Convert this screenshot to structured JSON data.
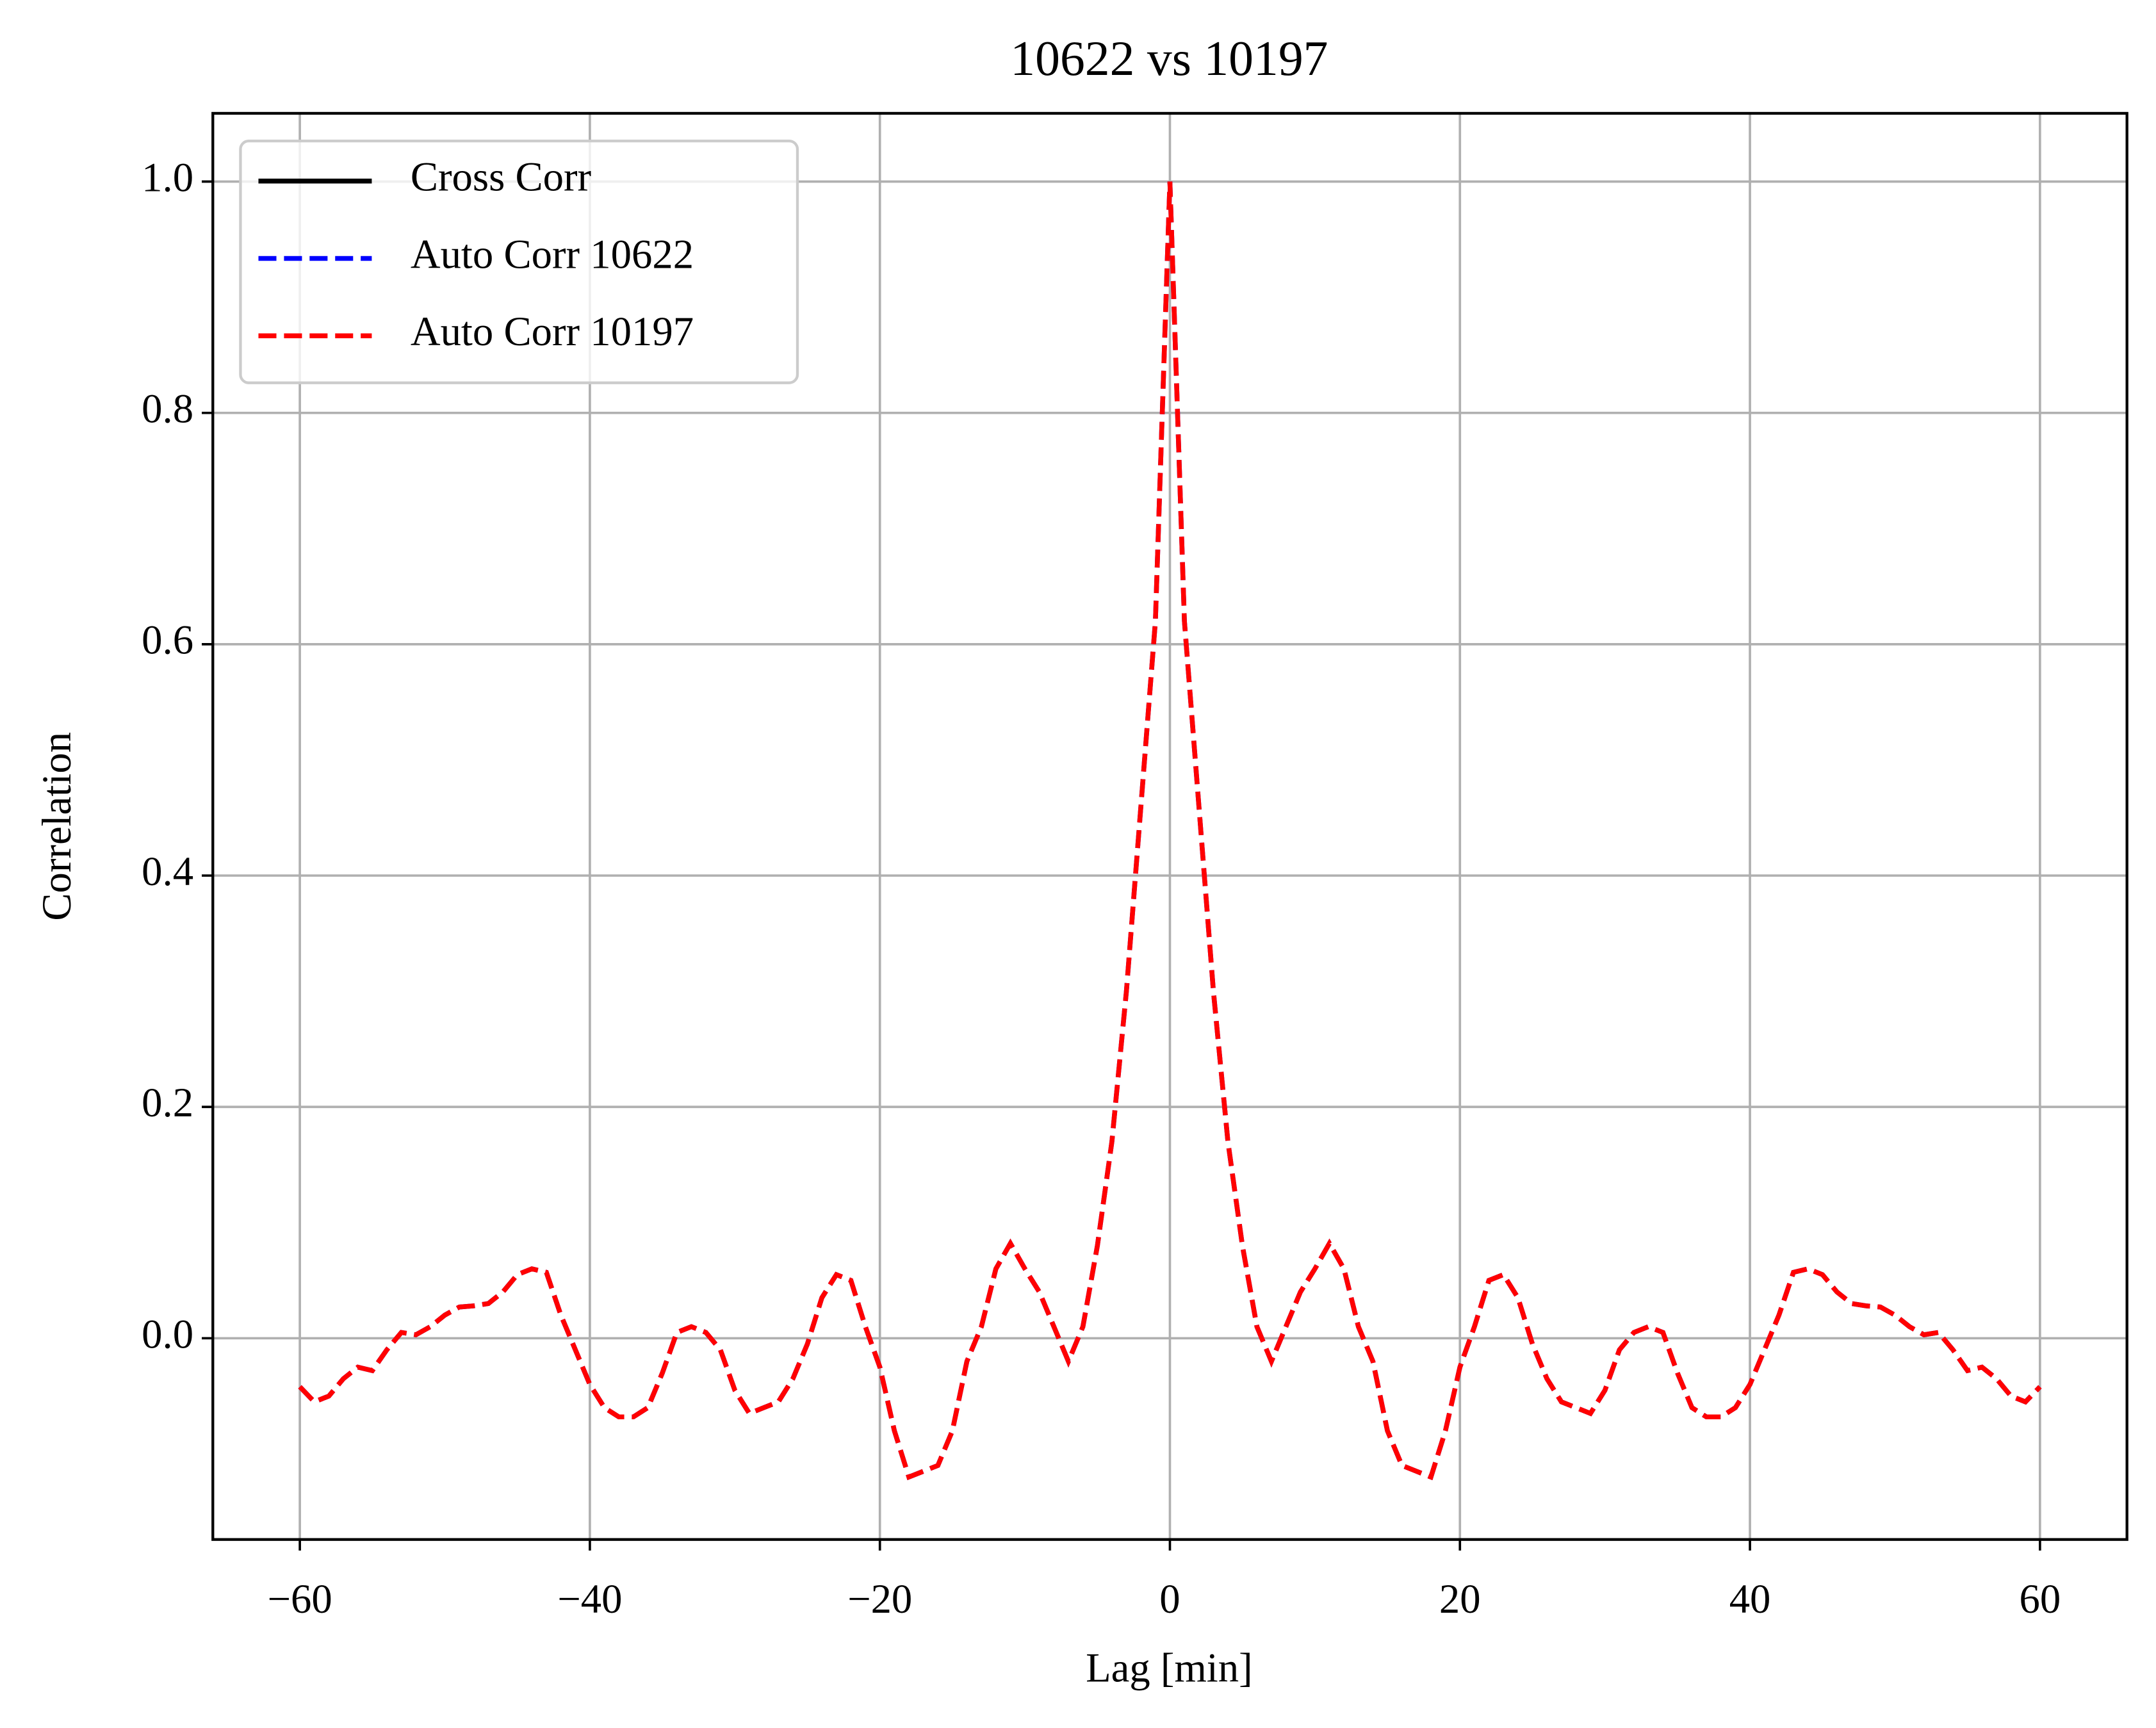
{
  "chart_data": {
    "type": "line",
    "title": "10622 vs 10197",
    "xlabel": "Lag [min]",
    "ylabel": "Correlation",
    "x": [
      -60,
      -59,
      -58,
      -57,
      -56,
      -55,
      -54,
      -53,
      -52,
      -51,
      -50,
      -49,
      -48,
      -47,
      -46,
      -45,
      -44,
      -43,
      -42,
      -41,
      -40,
      -39,
      -38,
      -37,
      -36,
      -35,
      -34,
      -33,
      -32,
      -31,
      -30,
      -29,
      -28,
      -27,
      -26,
      -25,
      -24,
      -23,
      -22,
      -21,
      -20,
      -19,
      -18,
      -17,
      -16,
      -15,
      -14,
      -13,
      -12,
      -11,
      -10,
      -9,
      -8,
      -7,
      -6,
      -5,
      -4,
      -3,
      -2,
      -1,
      0,
      1,
      2,
      3,
      4,
      5,
      6,
      7,
      8,
      9,
      10,
      11,
      12,
      13,
      14,
      15,
      16,
      17,
      18,
      19,
      20,
      21,
      22,
      23,
      24,
      25,
      26,
      27,
      28,
      29,
      30,
      31,
      32,
      33,
      34,
      35,
      36,
      37,
      38,
      39,
      40,
      41,
      42,
      43,
      44,
      45,
      46,
      47,
      48,
      49,
      50,
      51,
      52,
      53,
      54,
      55,
      56,
      57,
      58,
      59,
      60
    ],
    "series": [
      {
        "name": "Cross Corr",
        "color": "#000000",
        "dashed": false,
        "values": [
          null,
          null,
          null,
          null,
          null,
          null,
          null,
          null,
          null,
          null,
          null,
          null,
          null,
          null,
          null,
          null,
          null,
          null,
          null,
          null,
          null,
          null,
          null,
          null,
          null,
          null,
          null,
          null,
          null,
          null,
          null,
          null,
          null,
          null,
          null,
          null,
          null,
          null,
          null,
          null,
          null,
          null,
          null,
          null,
          null,
          null,
          null,
          null,
          null,
          null,
          null,
          null,
          null,
          null,
          null,
          null,
          null,
          null,
          null,
          null,
          null,
          null,
          null,
          null,
          null,
          null,
          null,
          null,
          null,
          null,
          null,
          null,
          null,
          null,
          null,
          null,
          null,
          null,
          null,
          null,
          null,
          null,
          null,
          null,
          null,
          null,
          null,
          null,
          null,
          null,
          null,
          null,
          null,
          null,
          null,
          null,
          null,
          null,
          null,
          null,
          null,
          null,
          null,
          null,
          null,
          null,
          null,
          null,
          null,
          null,
          null,
          null,
          null,
          null,
          null,
          null,
          null,
          null,
          null,
          null,
          null
        ]
      },
      {
        "name": "Auto Corr 10622",
        "color": "#0000ff",
        "dashed": true,
        "values": [
          -0.042,
          -0.055,
          -0.05,
          -0.035,
          -0.025,
          -0.028,
          -0.01,
          0.005,
          0.003,
          0.01,
          0.02,
          0.027,
          0.028,
          0.03,
          0.04,
          0.055,
          0.06,
          0.057,
          0.02,
          -0.01,
          -0.04,
          -0.06,
          -0.068,
          -0.068,
          -0.06,
          -0.03,
          0.005,
          0.01,
          0.005,
          -0.01,
          -0.045,
          -0.065,
          -0.06,
          -0.055,
          -0.035,
          -0.005,
          0.035,
          0.055,
          0.05,
          0.01,
          -0.025,
          -0.08,
          -0.12,
          -0.115,
          -0.11,
          -0.08,
          -0.02,
          0.01,
          0.06,
          0.082,
          0.06,
          0.04,
          0.01,
          -0.02,
          0.01,
          0.08,
          0.17,
          0.3,
          0.46,
          0.62,
          1.0,
          0.62,
          0.46,
          0.3,
          0.17,
          0.08,
          0.01,
          -0.02,
          0.01,
          0.04,
          0.06,
          0.082,
          0.06,
          0.01,
          -0.02,
          -0.08,
          -0.11,
          -0.115,
          -0.12,
          -0.08,
          -0.025,
          0.01,
          0.05,
          0.055,
          0.035,
          -0.005,
          -0.035,
          -0.055,
          -0.06,
          -0.065,
          -0.045,
          -0.01,
          0.005,
          0.01,
          0.005,
          -0.03,
          -0.06,
          -0.068,
          -0.068,
          -0.06,
          -0.04,
          -0.01,
          0.02,
          0.057,
          0.06,
          0.055,
          0.04,
          0.03,
          0.028,
          0.027,
          0.02,
          0.01,
          0.003,
          0.005,
          -0.01,
          -0.028,
          -0.025,
          -0.035,
          -0.05,
          -0.055,
          -0.042
        ]
      },
      {
        "name": "Auto Corr 10197",
        "color": "#ff0000",
        "dashed": true,
        "values": [
          -0.042,
          -0.055,
          -0.05,
          -0.035,
          -0.025,
          -0.028,
          -0.01,
          0.005,
          0.003,
          0.01,
          0.02,
          0.027,
          0.028,
          0.03,
          0.04,
          0.055,
          0.06,
          0.057,
          0.02,
          -0.01,
          -0.04,
          -0.06,
          -0.068,
          -0.068,
          -0.06,
          -0.03,
          0.005,
          0.01,
          0.005,
          -0.01,
          -0.045,
          -0.065,
          -0.06,
          -0.055,
          -0.035,
          -0.005,
          0.035,
          0.055,
          0.05,
          0.01,
          -0.025,
          -0.08,
          -0.12,
          -0.115,
          -0.11,
          -0.08,
          -0.02,
          0.01,
          0.06,
          0.082,
          0.06,
          0.04,
          0.01,
          -0.02,
          0.01,
          0.08,
          0.17,
          0.3,
          0.46,
          0.62,
          1.0,
          0.62,
          0.46,
          0.3,
          0.17,
          0.08,
          0.01,
          -0.02,
          0.01,
          0.04,
          0.06,
          0.082,
          0.06,
          0.01,
          -0.02,
          -0.08,
          -0.11,
          -0.115,
          -0.12,
          -0.08,
          -0.025,
          0.01,
          0.05,
          0.055,
          0.035,
          -0.005,
          -0.035,
          -0.055,
          -0.06,
          -0.065,
          -0.045,
          -0.01,
          0.005,
          0.01,
          0.005,
          -0.03,
          -0.06,
          -0.068,
          -0.068,
          -0.06,
          -0.04,
          -0.01,
          0.02,
          0.057,
          0.06,
          0.055,
          0.04,
          0.03,
          0.028,
          0.027,
          0.02,
          0.01,
          0.003,
          0.005,
          -0.01,
          -0.028,
          -0.025,
          -0.035,
          -0.05,
          -0.055,
          -0.042
        ]
      }
    ],
    "xlim": [
      -66,
      66
    ],
    "ylim": [
      -0.174,
      1.059
    ],
    "xticks": [
      {
        "value": -60,
        "label": "−60"
      },
      {
        "value": -40,
        "label": "−40"
      },
      {
        "value": -20,
        "label": "−20"
      },
      0,
      20,
      40,
      60
    ],
    "yticks": [
      {
        "value": 0,
        "label": "0.0"
      },
      0.2,
      0.4,
      0.6,
      0.8,
      {
        "value": 1,
        "label": "1.0"
      }
    ],
    "grid": true,
    "legend": "upper left"
  }
}
